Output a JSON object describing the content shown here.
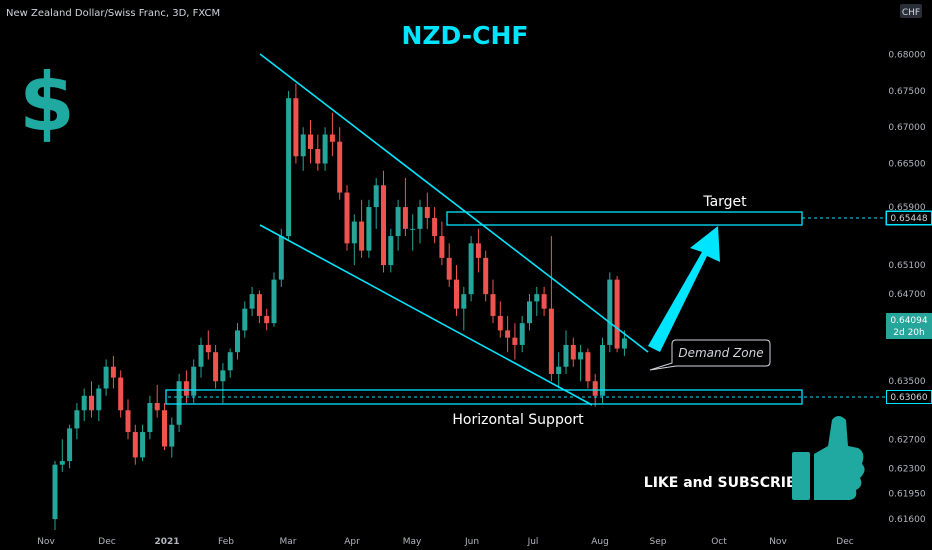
{
  "header": {
    "symbol_line": "New Zealand Dollar/Swiss Franc, 3D, FXCM",
    "title": "NZD-CHF",
    "currency_badge": "CHF",
    "dollar_sign": "$"
  },
  "annotations": {
    "target": "Target",
    "demand_zone": "Demand Zone",
    "horizontal_support": "Horizontal Support",
    "like_subscribe": "LIKE and SUBSCRIBE"
  },
  "price_tags": {
    "target_level": "0.65448",
    "current_price": "0.64094",
    "countdown": "2d 20h",
    "support_level": "0.63060"
  },
  "colors": {
    "background": "#000000",
    "accent": "#00e5ff",
    "up": "#26a69a",
    "down": "#ef5350",
    "text": "#d1d4dc"
  },
  "icons": [
    "dollar-sign-icon",
    "thumbs-up-icon",
    "arrow-up-right-icon"
  ],
  "chart_data": {
    "type": "candlestick",
    "title": "NZD-CHF",
    "timeframe": "3D",
    "ylim": [
      0.6145,
      0.6845
    ],
    "y_ticks": [
      0.616,
      0.6195,
      0.623,
      0.627,
      0.635,
      0.643,
      0.647,
      0.651,
      0.659,
      0.665,
      0.67,
      0.675,
      0.68
    ],
    "y_tick_labels": [
      "0.61600",
      "0.61950",
      "0.62300",
      "0.62700",
      "0.63500",
      "0.64300",
      "0.64700",
      "0.65100",
      "0.65900",
      "0.66500",
      "0.67000",
      "0.67500",
      "0.68000"
    ],
    "x_tick_labels": [
      "Nov",
      "Dec",
      "2021",
      "Feb",
      "Mar",
      "Apr",
      "May",
      "Jun",
      "Jul",
      "Aug",
      "Sep",
      "Oct",
      "Nov",
      "Dec"
    ],
    "levels": {
      "target": 0.65448,
      "support": 0.6306,
      "current": 0.64094
    },
    "candles": [
      [
        0.616,
        0.624,
        0.6145,
        0.6235
      ],
      [
        0.6235,
        0.627,
        0.6225,
        0.624
      ],
      [
        0.624,
        0.629,
        0.623,
        0.6285
      ],
      [
        0.6285,
        0.632,
        0.627,
        0.631
      ],
      [
        0.631,
        0.634,
        0.6295,
        0.633
      ],
      [
        0.633,
        0.635,
        0.63,
        0.631
      ],
      [
        0.631,
        0.6345,
        0.6295,
        0.634
      ],
      [
        0.634,
        0.638,
        0.633,
        0.637
      ],
      [
        0.637,
        0.6385,
        0.634,
        0.6355
      ],
      [
        0.6355,
        0.6365,
        0.63,
        0.631
      ],
      [
        0.631,
        0.6325,
        0.627,
        0.628
      ],
      [
        0.628,
        0.629,
        0.6235,
        0.6245
      ],
      [
        0.6245,
        0.629,
        0.624,
        0.628
      ],
      [
        0.628,
        0.633,
        0.627,
        0.632
      ],
      [
        0.632,
        0.6345,
        0.63,
        0.631
      ],
      [
        0.631,
        0.632,
        0.6255,
        0.626
      ],
      [
        0.626,
        0.63,
        0.6245,
        0.629
      ],
      [
        0.629,
        0.636,
        0.628,
        0.635
      ],
      [
        0.635,
        0.6365,
        0.632,
        0.633
      ],
      [
        0.633,
        0.638,
        0.632,
        0.637
      ],
      [
        0.637,
        0.641,
        0.6355,
        0.64
      ],
      [
        0.64,
        0.642,
        0.638,
        0.639
      ],
      [
        0.639,
        0.64,
        0.634,
        0.635
      ],
      [
        0.635,
        0.6375,
        0.632,
        0.6365
      ],
      [
        0.6365,
        0.6395,
        0.6355,
        0.639
      ],
      [
        0.639,
        0.643,
        0.638,
        0.642
      ],
      [
        0.642,
        0.646,
        0.641,
        0.645
      ],
      [
        0.645,
        0.648,
        0.644,
        0.647
      ],
      [
        0.647,
        0.6475,
        0.643,
        0.644
      ],
      [
        0.644,
        0.645,
        0.642,
        0.643
      ],
      [
        0.643,
        0.65,
        0.6425,
        0.649
      ],
      [
        0.649,
        0.656,
        0.648,
        0.655
      ],
      [
        0.655,
        0.675,
        0.6545,
        0.674
      ],
      [
        0.674,
        0.676,
        0.665,
        0.666
      ],
      [
        0.666,
        0.67,
        0.664,
        0.669
      ],
      [
        0.669,
        0.671,
        0.665,
        0.667
      ],
      [
        0.667,
        0.669,
        0.664,
        0.665
      ],
      [
        0.665,
        0.67,
        0.664,
        0.669
      ],
      [
        0.669,
        0.672,
        0.666,
        0.668
      ],
      [
        0.668,
        0.67,
        0.66,
        0.661
      ],
      [
        0.661,
        0.662,
        0.653,
        0.654
      ],
      [
        0.654,
        0.658,
        0.651,
        0.657
      ],
      [
        0.657,
        0.66,
        0.652,
        0.653
      ],
      [
        0.653,
        0.66,
        0.652,
        0.659
      ],
      [
        0.659,
        0.663,
        0.656,
        0.662
      ],
      [
        0.662,
        0.664,
        0.65,
        0.651
      ],
      [
        0.651,
        0.656,
        0.65,
        0.655
      ],
      [
        0.655,
        0.66,
        0.653,
        0.659
      ],
      [
        0.659,
        0.663,
        0.655,
        0.656
      ],
      [
        0.656,
        0.658,
        0.653,
        0.656
      ],
      [
        0.656,
        0.66,
        0.654,
        0.659
      ],
      [
        0.659,
        0.661,
        0.656,
        0.6575
      ],
      [
        0.6575,
        0.659,
        0.654,
        0.655
      ],
      [
        0.655,
        0.657,
        0.651,
        0.652
      ],
      [
        0.652,
        0.654,
        0.648,
        0.649
      ],
      [
        0.649,
        0.651,
        0.644,
        0.645
      ],
      [
        0.645,
        0.648,
        0.642,
        0.647
      ],
      [
        0.647,
        0.655,
        0.646,
        0.654
      ],
      [
        0.654,
        0.656,
        0.65,
        0.652
      ],
      [
        0.652,
        0.653,
        0.646,
        0.647
      ],
      [
        0.647,
        0.649,
        0.643,
        0.644
      ],
      [
        0.644,
        0.646,
        0.641,
        0.642
      ],
      [
        0.642,
        0.644,
        0.639,
        0.641
      ],
      [
        0.641,
        0.643,
        0.638,
        0.64
      ],
      [
        0.64,
        0.644,
        0.639,
        0.643
      ],
      [
        0.643,
        0.647,
        0.642,
        0.646
      ],
      [
        0.646,
        0.648,
        0.644,
        0.647
      ],
      [
        0.647,
        0.648,
        0.644,
        0.645
      ],
      [
        0.645,
        0.655,
        0.635,
        0.636
      ],
      [
        0.636,
        0.639,
        0.634,
        0.637
      ],
      [
        0.637,
        0.642,
        0.636,
        0.64
      ],
      [
        0.64,
        0.641,
        0.637,
        0.638
      ],
      [
        0.638,
        0.64,
        0.635,
        0.639
      ],
      [
        0.639,
        0.6395,
        0.634,
        0.635
      ],
      [
        0.635,
        0.636,
        0.6315,
        0.633
      ],
      [
        0.633,
        0.641,
        0.632,
        0.64
      ],
      [
        0.64,
        0.65,
        0.639,
        0.649
      ],
      [
        0.649,
        0.6495,
        0.639,
        0.6395
      ],
      [
        0.6395,
        0.642,
        0.6385,
        0.6409
      ]
    ]
  }
}
